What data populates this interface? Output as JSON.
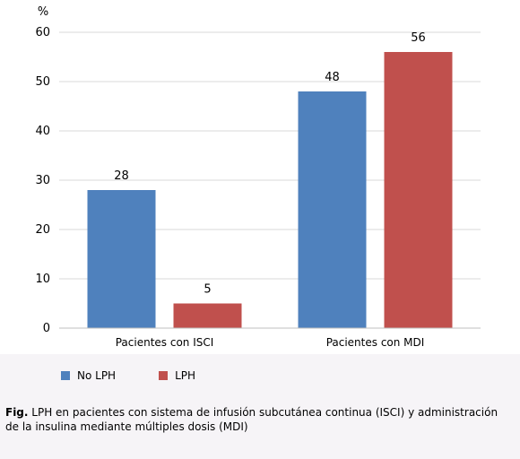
{
  "chart_data": {
    "type": "bar",
    "ylabel": "%",
    "ylim": [
      0,
      60
    ],
    "yticks": [
      0,
      10,
      20,
      30,
      40,
      50,
      60
    ],
    "grid": true,
    "legend_position": "bottom-left",
    "categories": [
      "Pacientes con ISCI",
      "Pacientes con MDI"
    ],
    "series": [
      {
        "name": "No LPH",
        "color": "#4f81bd",
        "values": [
          28,
          48
        ]
      },
      {
        "name": "LPH",
        "color": "#c0504d",
        "values": [
          5,
          56
        ]
      }
    ],
    "data_labels": true
  },
  "caption": {
    "prefix": "Fig.",
    "text": " LPH en pacientes con sistema de infusión subcutánea continua (ISCI) y administración de la insulina mediante múltiples dosis (MDI)"
  }
}
